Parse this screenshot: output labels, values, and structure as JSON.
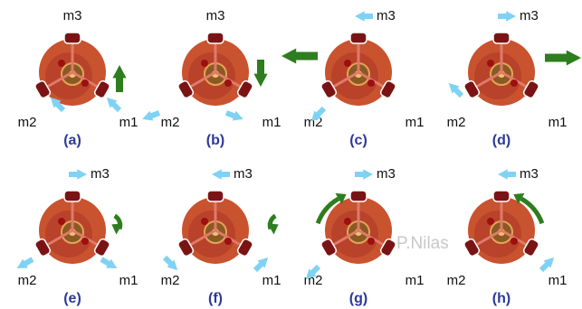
{
  "panels": [
    {
      "label": "(a)",
      "m1": "m1",
      "m2": "m2",
      "m3": "m3"
    },
    {
      "label": "(b)",
      "m1": "m1",
      "m2": "m2",
      "m3": "m3"
    },
    {
      "label": "(c)",
      "m1": "m1",
      "m2": "m2",
      "m3": "m3"
    },
    {
      "label": "(d)",
      "m1": "m1",
      "m2": "m2",
      "m3": "m3"
    },
    {
      "label": "(e)",
      "m1": "m1",
      "m2": "m2",
      "m3": "m3"
    },
    {
      "label": "(f)",
      "m1": "m1",
      "m2": "m2",
      "m3": "m3"
    },
    {
      "label": "(g)",
      "m1": "m1",
      "m2": "m2",
      "m3": "m3"
    },
    {
      "label": "(h)",
      "m1": "m1",
      "m2": "m2",
      "m3": "m3"
    }
  ],
  "watermark": "P.Nilas"
}
